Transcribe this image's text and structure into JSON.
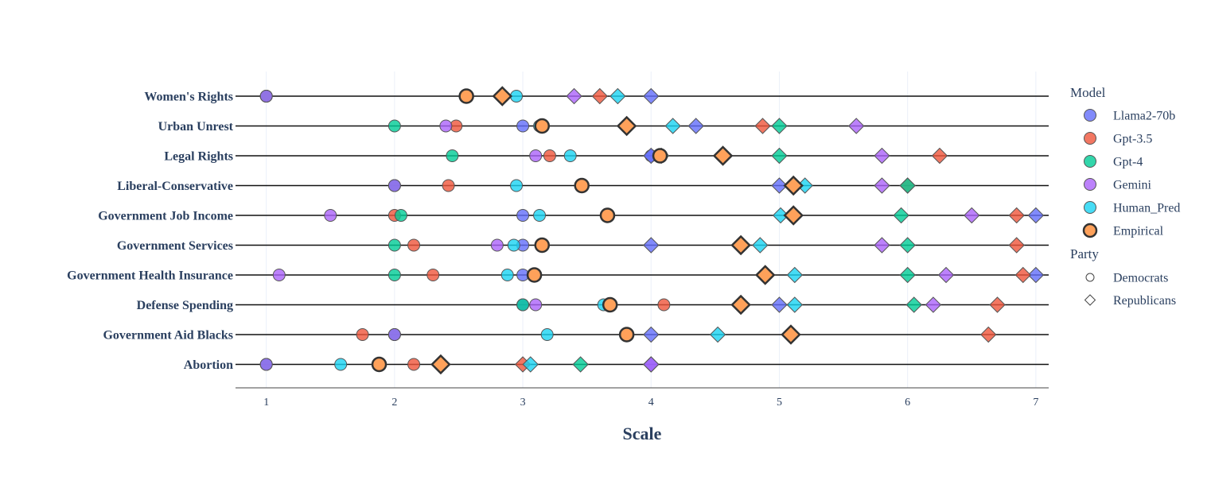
{
  "chart_data": {
    "type": "scatter",
    "title": "",
    "xlabel": "Scale",
    "ylabel": "",
    "xlim": [
      0.76,
      7.1
    ],
    "xticks": [
      1,
      2,
      3,
      4,
      5,
      6,
      7
    ],
    "grid": "vertical",
    "categories": [
      "Women's Rights",
      "Urban Unrest",
      "Legal Rights",
      "Liberal-Conservative",
      "Government Job Income",
      "Government Services",
      "Government Health Insurance",
      "Defense Spending",
      "Government Aid Blacks",
      "Abortion"
    ],
    "legend": {
      "placement": "right",
      "model_title": "Model",
      "party_title": "Party",
      "party_entries": [
        {
          "name": "Democrats",
          "symbol": "circle"
        },
        {
          "name": "Republicans",
          "symbol": "diamond"
        }
      ]
    },
    "series": [
      {
        "name": "Llama2-70b",
        "color": "#636efa",
        "democrats": [
          1.0,
          3.0,
          4.0,
          2.0,
          3.0,
          3.0,
          3.0,
          3.0,
          2.0,
          1.0
        ],
        "republicans": [
          4.0,
          4.35,
          4.0,
          5.0,
          7.0,
          4.0,
          7.0,
          5.0,
          4.0,
          4.0
        ]
      },
      {
        "name": "Gpt-3.5",
        "color": "#ef553b",
        "democrats": [
          1.0,
          2.48,
          3.21,
          2.42,
          2.0,
          2.15,
          2.3,
          4.1,
          1.75,
          2.15
        ],
        "republicans": [
          3.6,
          4.87,
          6.25,
          6.0,
          6.85,
          6.85,
          6.9,
          6.7,
          6.63,
          3.0
        ]
      },
      {
        "name": "Gpt-4",
        "color": "#00cc96",
        "democrats": [
          1.0,
          2.0,
          2.45,
          2.0,
          2.05,
          2.0,
          2.0,
          3.0,
          2.0,
          1.0
        ],
        "republicans": [
          2.85,
          5.0,
          5.0,
          6.0,
          5.95,
          6.0,
          6.0,
          6.05,
          5.1,
          3.45
        ]
      },
      {
        "name": "Gemini",
        "color": "#ab63fa",
        "democrats": [
          1.0,
          2.4,
          3.1,
          2.0,
          1.5,
          2.8,
          1.1,
          3.1,
          2.0,
          1.0
        ],
        "republicans": [
          3.4,
          5.6,
          5.8,
          5.8,
          6.5,
          5.8,
          6.3,
          6.2,
          5.1,
          4.0
        ]
      },
      {
        "name": "Human_Pred",
        "color": "#19d3f3",
        "democrats": [
          2.95,
          3.13,
          3.37,
          2.95,
          3.13,
          2.93,
          2.88,
          3.63,
          3.19,
          1.58
        ],
        "republicans": [
          3.74,
          4.17,
          4.08,
          5.2,
          5.01,
          4.85,
          5.12,
          5.12,
          4.52,
          3.06
        ]
      },
      {
        "name": "Empirical",
        "color": "#ffa15a",
        "democrats": [
          2.56,
          3.15,
          4.07,
          3.46,
          3.66,
          3.15,
          3.09,
          3.68,
          3.81,
          1.88
        ],
        "republicans": [
          2.84,
          3.81,
          4.56,
          5.11,
          5.11,
          4.7,
          4.89,
          4.7,
          5.09,
          2.36
        ]
      }
    ]
  }
}
